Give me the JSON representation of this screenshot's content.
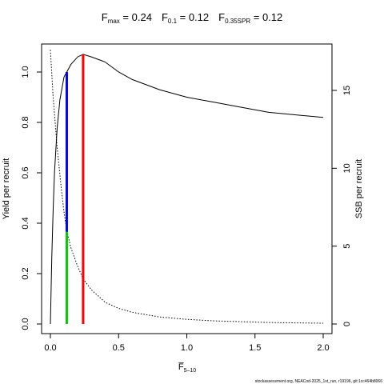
{
  "chart_data": {
    "type": "line",
    "title_parts": [
      {
        "main": "F",
        "sub": "max",
        "rest": " = 0.24"
      },
      {
        "main": "F",
        "sub": "0.1",
        "rest": " = 0.12"
      },
      {
        "main": "F",
        "sub": "0.35SPR",
        "rest": " = 0.12"
      }
    ],
    "xlabel": {
      "main": "F̅",
      "sub": "5–10"
    },
    "ylabel": "Yield per recruit",
    "y2label": "SSB per recruit",
    "xlim": [
      0,
      2
    ],
    "ylim": [
      0,
      1.0
    ],
    "y2lim": [
      0,
      16
    ],
    "xticks": [
      "0.0",
      "0.5",
      "1.0",
      "1.5",
      "2.0"
    ],
    "yticks": [
      "0.0",
      "0.2",
      "0.4",
      "0.6",
      "0.8",
      "1.0"
    ],
    "y2ticks": [
      "0",
      "5",
      "10",
      "15"
    ],
    "series": [
      {
        "axis": "left",
        "style": "solid",
        "color": "#000000",
        "x": [
          0,
          0.01,
          0.02,
          0.03,
          0.05,
          0.07,
          0.1,
          0.12,
          0.15,
          0.2,
          0.24,
          0.3,
          0.4,
          0.5,
          0.6,
          0.8,
          1.0,
          1.2,
          1.4,
          1.6,
          1.8,
          2.0
        ],
        "y": [
          0.0,
          0.26,
          0.45,
          0.6,
          0.78,
          0.89,
          0.98,
          1.0,
          1.03,
          1.06,
          1.07,
          1.06,
          1.04,
          1.0,
          0.97,
          0.93,
          0.9,
          0.88,
          0.86,
          0.84,
          0.83,
          0.82
        ]
      },
      {
        "axis": "right",
        "style": "dotted",
        "color": "#000000",
        "x": [
          0,
          0.02,
          0.05,
          0.08,
          0.1,
          0.12,
          0.15,
          0.2,
          0.24,
          0.3,
          0.4,
          0.5,
          0.6,
          0.8,
          1.0,
          1.2,
          1.4,
          1.6,
          1.8,
          2.0
        ],
        "y": [
          17.6,
          14.6,
          11.3,
          8.7,
          7.2,
          6.0,
          4.9,
          3.7,
          2.9,
          2.2,
          1.4,
          1.0,
          0.75,
          0.45,
          0.3,
          0.2,
          0.15,
          0.1,
          0.07,
          0.05
        ]
      }
    ],
    "reference_lines": [
      {
        "label": "F0.35SPR",
        "x": 0.12,
        "color": "#00cc00",
        "axis": "right",
        "y_from": 0,
        "y_to": 6.0
      },
      {
        "label": "F0.1",
        "x": 0.12,
        "color": "#0000ff",
        "axis": "left",
        "y_from": 0.366,
        "y_to": 1.0
      },
      {
        "label": "Fmax",
        "x": 0.24,
        "color": "#ff0000",
        "axis": "left",
        "y_from": 0,
        "y_to": 1.07
      }
    ],
    "grid": false,
    "legend": "none"
  },
  "watermark": "stockassessment.org, NEACod-2025_1st_run, r19196, git:1cc464b8066"
}
